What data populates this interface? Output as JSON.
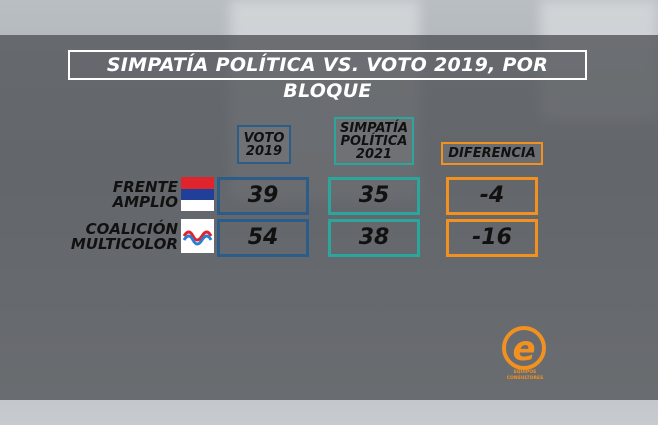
{
  "title": "SIMPATÍA POLÍTICA VS. VOTO 2019, POR BLOQUE",
  "table": {
    "columns": [
      [
        "VOTO",
        "2019"
      ],
      [
        "SIMPATÍA",
        "POLÍTICA",
        "2021"
      ],
      [
        "DIFERENCIA"
      ]
    ],
    "rows": [
      {
        "label": [
          "FRENTE",
          "AMPLIO"
        ],
        "cells": [
          39,
          35,
          -4
        ]
      },
      {
        "label": [
          "COALICIÓN",
          "MULTICOLOR"
        ],
        "cells": [
          54,
          38,
          -16
        ]
      }
    ]
  },
  "logo": [
    "EQUIPOS",
    "CONSULTORES"
  ]
}
